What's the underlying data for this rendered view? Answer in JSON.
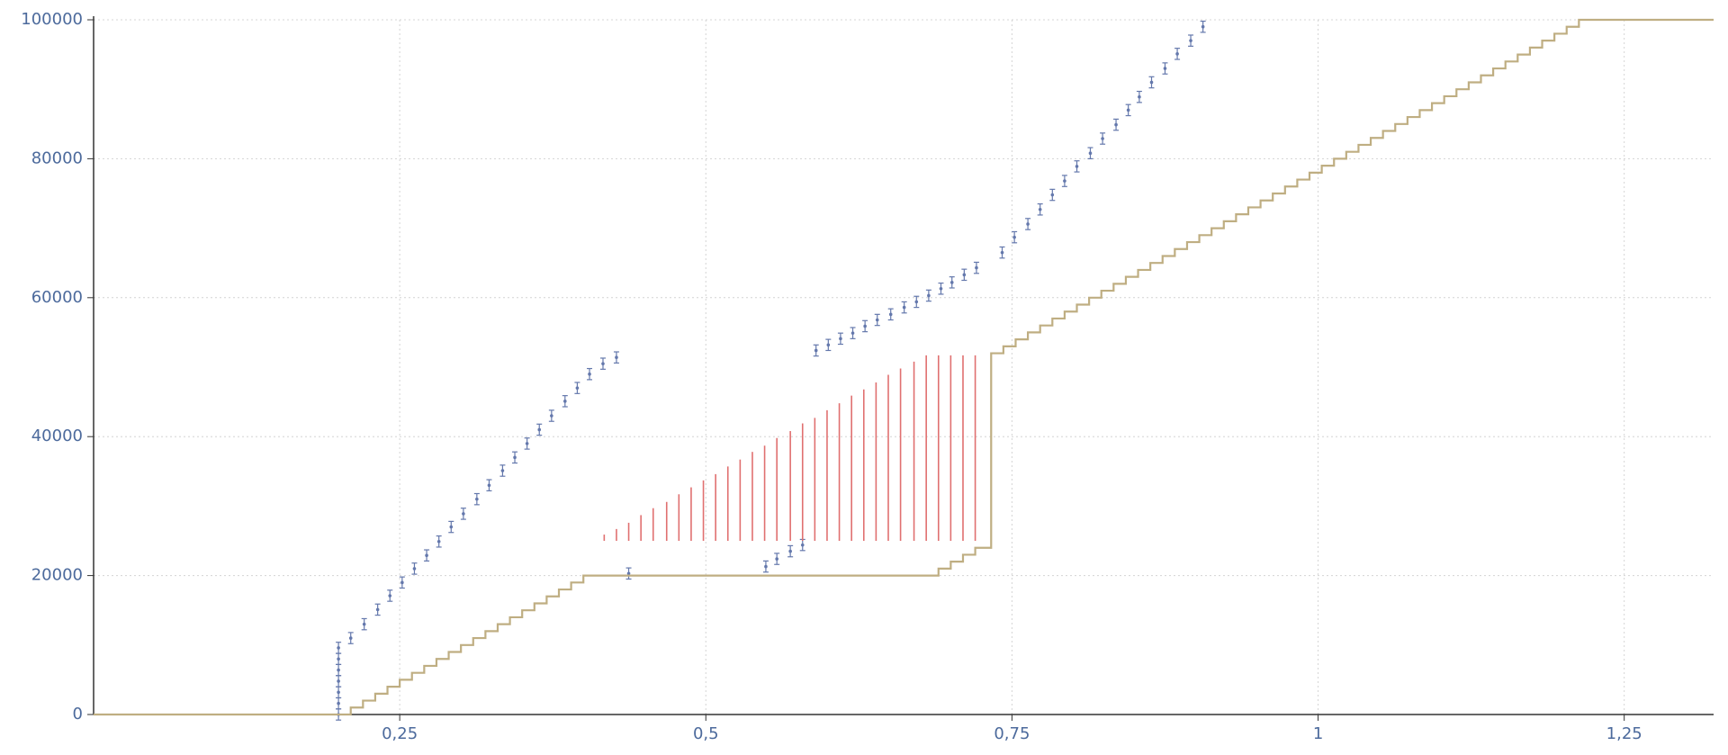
{
  "chart_data": {
    "type": "scatter",
    "xlim": [
      0,
      1.323
    ],
    "ylim": [
      0,
      100000
    ],
    "xticks": [
      {
        "value": 0.25,
        "label": "0,25"
      },
      {
        "value": 0.5,
        "label": "0,5"
      },
      {
        "value": 0.75,
        "label": "0,75"
      },
      1,
      {
        "value": 1.25,
        "label": "1,25"
      }
    ],
    "yticks": [
      0,
      20000,
      40000,
      60000,
      80000,
      100000
    ],
    "grid": true,
    "series": [
      {
        "type": "errorbar",
        "color": "#6478ac",
        "error": 800,
        "x": [
          0.2,
          0.2,
          0.2,
          0.2,
          0.2,
          0.2,
          0.2,
          0.21,
          0.221,
          0.232,
          0.242,
          0.252,
          0.262,
          0.272,
          0.282,
          0.292,
          0.302,
          0.313,
          0.323,
          0.334,
          0.344,
          0.354,
          0.364,
          0.374,
          0.385,
          0.395,
          0.405,
          0.416,
          0.427,
          0.437,
          0.549,
          0.558,
          0.569,
          0.579,
          0.59,
          0.6,
          0.61,
          0.62,
          0.63,
          0.64,
          0.651,
          0.662,
          0.672,
          0.682,
          0.692,
          0.701,
          0.711,
          0.721,
          0.742,
          0.752,
          0.763,
          0.773,
          0.783,
          0.793,
          0.803,
          0.814,
          0.824,
          0.835,
          0.845,
          0.854,
          0.864,
          0.875,
          0.885,
          0.896,
          0.906
        ],
        "values": [
          0,
          1600,
          3200,
          4800,
          6400,
          8000,
          9600,
          11000,
          13000,
          15100,
          17100,
          19000,
          21000,
          22900,
          24900,
          27000,
          28900,
          31000,
          33000,
          35100,
          37000,
          39000,
          41000,
          43000,
          45100,
          47000,
          49000,
          50500,
          51400,
          20300,
          21300,
          22400,
          23500,
          24400,
          52400,
          53200,
          54100,
          54900,
          55900,
          56800,
          57600,
          58600,
          59400,
          60300,
          61300,
          62200,
          63300,
          64300,
          66500,
          68700,
          70600,
          72700,
          74800,
          76800,
          78900,
          80800,
          82900,
          84900,
          87000,
          88900,
          91000,
          93000,
          95100,
          97000,
          99000
        ]
      },
      {
        "type": "range",
        "color": "#e07070",
        "low": 25000,
        "x": [
          0.417,
          0.427,
          0.437,
          0.447,
          0.457,
          0.468,
          0.478,
          0.488,
          0.498,
          0.508,
          0.518,
          0.528,
          0.538,
          0.548,
          0.558,
          0.569,
          0.579,
          0.589,
          0.599,
          0.609,
          0.619,
          0.629,
          0.639,
          0.649,
          0.659,
          0.67,
          0.68,
          0.69,
          0.7,
          0.71,
          0.72
        ],
        "values": [
          25900,
          26700,
          27600,
          28700,
          29700,
          30600,
          31700,
          32700,
          33700,
          34600,
          35700,
          36700,
          37800,
          38700,
          39800,
          40800,
          41900,
          42700,
          43800,
          44800,
          45900,
          46800,
          47800,
          48900,
          49800,
          50800,
          51700,
          51700,
          51700,
          51700,
          51700
        ]
      },
      {
        "type": "step",
        "color": "#bfae82",
        "x": [
          0,
          0.21,
          0.22,
          0.23,
          0.24,
          0.25,
          0.26,
          0.27,
          0.28,
          0.29,
          0.3,
          0.31,
          0.32,
          0.33,
          0.34,
          0.35,
          0.36,
          0.37,
          0.38,
          0.39,
          0.4,
          0.69,
          0.7,
          0.71,
          0.72,
          0.733,
          0.743,
          0.753,
          0.763,
          0.773,
          0.783,
          0.793,
          0.803,
          0.813,
          0.823,
          0.833,
          0.843,
          0.853,
          0.863,
          0.873,
          0.883,
          0.893,
          0.903,
          0.913,
          0.923,
          0.933,
          0.943,
          0.953,
          0.963,
          0.973,
          0.983,
          0.993,
          1.003,
          1.013,
          1.023,
          1.033,
          1.043,
          1.053,
          1.063,
          1.073,
          1.083,
          1.093,
          1.103,
          1.113,
          1.123,
          1.133,
          1.143,
          1.153,
          1.163,
          1.173,
          1.183,
          1.193,
          1.203,
          1.213,
          1.323
        ],
        "values": [
          0,
          1000,
          2000,
          3000,
          4000,
          5000,
          6000,
          7000,
          8000,
          9000,
          10000,
          11000,
          12000,
          13000,
          14000,
          15000,
          16000,
          17000,
          18000,
          19000,
          20000,
          21000,
          22000,
          23000,
          24000,
          52000,
          53000,
          54000,
          55000,
          56000,
          57000,
          58000,
          59000,
          60000,
          61000,
          62000,
          63000,
          64000,
          65000,
          66000,
          67000,
          68000,
          69000,
          70000,
          71000,
          72000,
          73000,
          74000,
          75000,
          76000,
          77000,
          78000,
          79000,
          80000,
          81000,
          82000,
          83000,
          84000,
          85000,
          86000,
          87000,
          88000,
          89000,
          90000,
          91000,
          92000,
          93000,
          94000,
          95000,
          96000,
          97000,
          98000,
          99000,
          100000,
          100000
        ]
      }
    ]
  }
}
